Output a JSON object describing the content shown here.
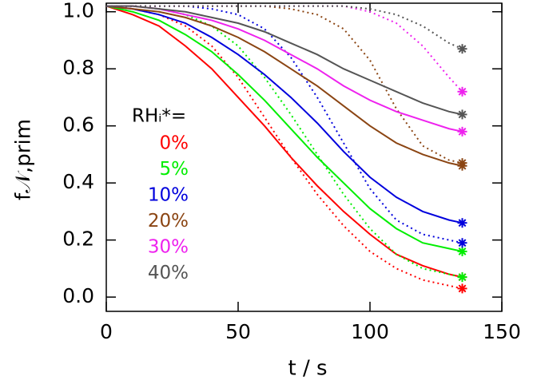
{
  "chart_data": {
    "type": "line",
    "x_label": "t / s",
    "y_label": "f𝒩,prim",
    "legend_title": "RHᵢ*=",
    "xlim": [
      0,
      150
    ],
    "xticks": [
      0,
      50,
      100,
      150
    ],
    "ylim": [
      -0.05,
      1.03
    ],
    "yticks": [
      {
        "value": 0,
        "label": "0.0"
      },
      {
        "value": 0.2,
        "label": "0.2"
      },
      {
        "value": 0.4,
        "label": "0.4"
      },
      {
        "value": 0.6,
        "label": "0.6"
      },
      {
        "value": 0.8,
        "label": "0.8"
      },
      {
        "value": 1,
        "label": "1.0"
      }
    ],
    "x": [
      0,
      10,
      20,
      30,
      40,
      50,
      60,
      70,
      80,
      90,
      100,
      110,
      120,
      130,
      135
    ],
    "series": [
      {
        "name": "0%",
        "color": "#ff0000",
        "values": [
          1.02,
          0.99,
          0.95,
          0.88,
          0.8,
          0.7,
          0.6,
          0.49,
          0.39,
          0.3,
          0.22,
          0.15,
          0.11,
          0.08,
          0.07
        ],
        "dotted_values": [
          1.02,
          1.01,
          0.99,
          0.95,
          0.88,
          0.77,
          0.63,
          0.49,
          0.36,
          0.25,
          0.16,
          0.1,
          0.06,
          0.04,
          0.03
        ]
      },
      {
        "name": "5%",
        "color": "#00ee00",
        "values": [
          1.02,
          1.0,
          0.97,
          0.92,
          0.86,
          0.78,
          0.69,
          0.59,
          0.49,
          0.4,
          0.31,
          0.24,
          0.19,
          0.17,
          0.16
        ],
        "dotted_values": [
          1.02,
          1.02,
          1.01,
          0.99,
          0.95,
          0.88,
          0.77,
          0.64,
          0.5,
          0.36,
          0.24,
          0.15,
          0.1,
          0.08,
          0.07
        ]
      },
      {
        "name": "10%",
        "color": "#0000dd",
        "values": [
          1.02,
          1.01,
          0.99,
          0.96,
          0.91,
          0.85,
          0.78,
          0.7,
          0.61,
          0.51,
          0.42,
          0.35,
          0.3,
          0.27,
          0.26
        ],
        "dotted_values": [
          1.02,
          1.02,
          1.02,
          1.02,
          1.01,
          0.99,
          0.94,
          0.84,
          0.7,
          0.54,
          0.38,
          0.27,
          0.22,
          0.2,
          0.19
        ]
      },
      {
        "name": "20%",
        "color": "#8b4513",
        "values": [
          1.02,
          1.01,
          1.0,
          0.98,
          0.95,
          0.91,
          0.86,
          0.8,
          0.74,
          0.67,
          0.6,
          0.54,
          0.5,
          0.47,
          0.46
        ],
        "dotted_values": [
          1.02,
          1.02,
          1.02,
          1.02,
          1.02,
          1.02,
          1.02,
          1.01,
          0.99,
          0.94,
          0.83,
          0.66,
          0.53,
          0.48,
          0.47
        ]
      },
      {
        "name": "30%",
        "color": "#ee22ee",
        "values": [
          1.02,
          1.02,
          1.01,
          0.99,
          0.97,
          0.94,
          0.9,
          0.85,
          0.8,
          0.74,
          0.69,
          0.65,
          0.62,
          0.59,
          0.58
        ],
        "dotted_values": [
          1.02,
          1.02,
          1.02,
          1.02,
          1.02,
          1.02,
          1.02,
          1.02,
          1.02,
          1.02,
          1.0,
          0.96,
          0.88,
          0.77,
          0.72
        ]
      },
      {
        "name": "40%",
        "color": "#555555",
        "values": [
          1.02,
          1.02,
          1.01,
          1.0,
          0.98,
          0.96,
          0.93,
          0.89,
          0.85,
          0.8,
          0.76,
          0.72,
          0.68,
          0.65,
          0.64
        ],
        "dotted_values": [
          1.02,
          1.02,
          1.02,
          1.02,
          1.02,
          1.02,
          1.02,
          1.02,
          1.02,
          1.02,
          1.01,
          0.99,
          0.95,
          0.89,
          0.87
        ]
      }
    ]
  }
}
